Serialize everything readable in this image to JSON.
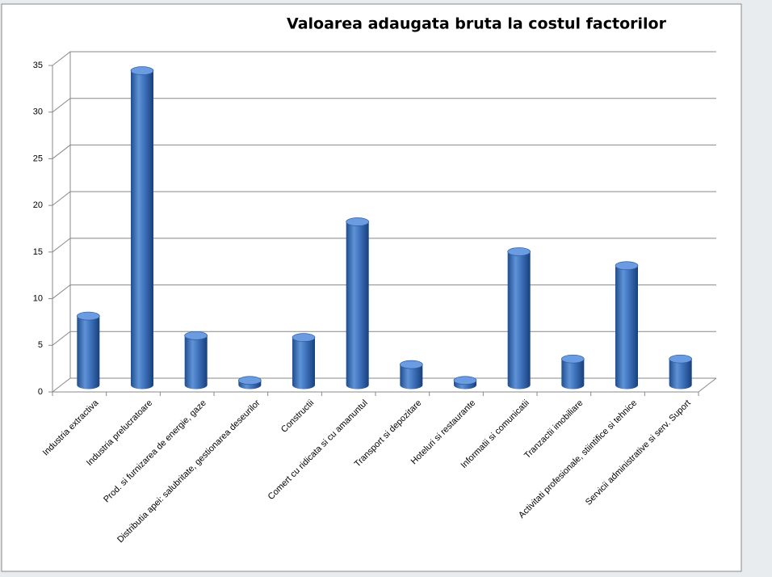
{
  "chart_data": {
    "type": "bar3d",
    "title": "Valoarea adaugata bruta  la costul factorilor",
    "categories": [
      "Industria extractiva",
      "Industria prelucratoare",
      "Prod. si furnizarea de energie, gaze",
      "Distributia apei: salubritate, gestionarea deseurilor",
      "Constructii",
      "Comert cu ridicata si cu amanuntul",
      "Transport si depozitare",
      "Hoteluri si restaurante",
      "Informatii si comunicatii",
      "Tranzactii imobiliare",
      "Activitati profesionale, stiintifice si tehnice",
      "Servicii administrative si serv. Suport"
    ],
    "values": [
      7.4,
      33.7,
      5.3,
      0.5,
      5.1,
      17.5,
      2.2,
      0.5,
      14.3,
      2.8,
      12.8,
      2.8
    ],
    "color": "#3f72bd",
    "ylim": [
      0,
      35
    ],
    "yticks": [
      0,
      5,
      10,
      15,
      20,
      25,
      30,
      35
    ],
    "grid": true
  }
}
